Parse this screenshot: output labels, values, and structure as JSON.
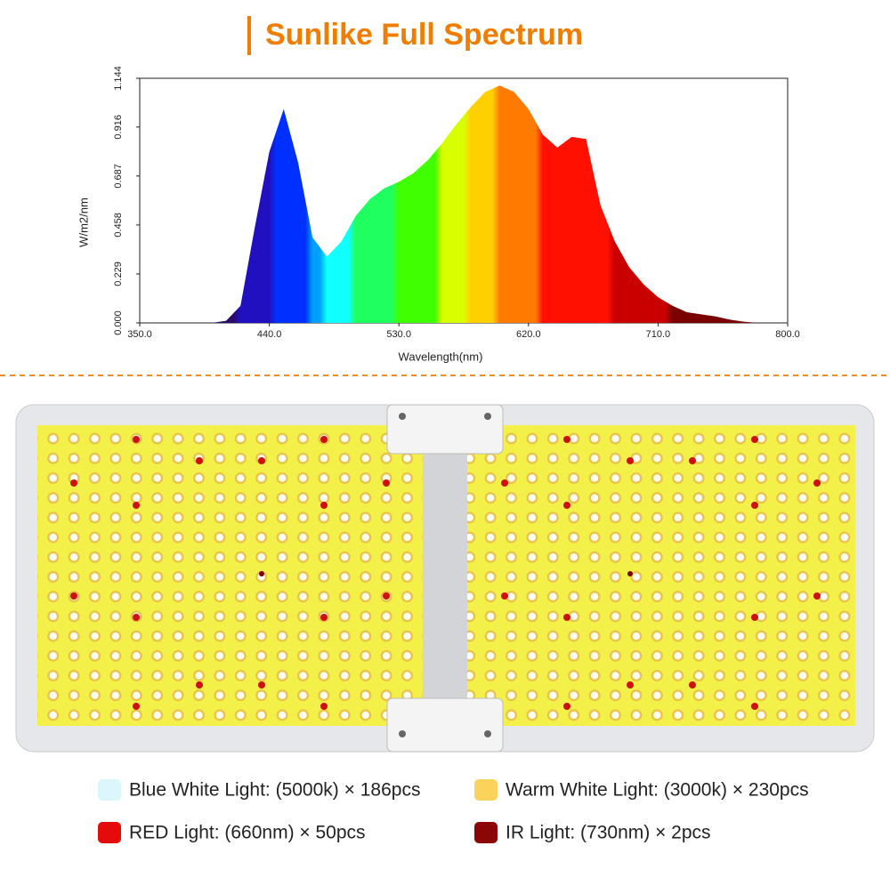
{
  "title": "Sunlike Full Spectrum",
  "chart_data": {
    "type": "area",
    "y_label": "W/m2/nm",
    "x_label": "Wavelength(nm)",
    "x": [
      350,
      360,
      370,
      380,
      390,
      400,
      410,
      420,
      430,
      440,
      450,
      460,
      470,
      480,
      490,
      500,
      510,
      520,
      530,
      540,
      550,
      560,
      570,
      580,
      590,
      600,
      610,
      620,
      630,
      640,
      650,
      660,
      670,
      680,
      690,
      700,
      710,
      720,
      730,
      740,
      750,
      760,
      770,
      780
    ],
    "values": [
      0,
      0,
      0,
      0,
      0,
      0,
      0.01,
      0.08,
      0.45,
      0.8,
      1.0,
      0.75,
      0.4,
      0.31,
      0.38,
      0.5,
      0.58,
      0.63,
      0.66,
      0.7,
      0.76,
      0.84,
      0.93,
      1.01,
      1.08,
      1.11,
      1.08,
      1.0,
      0.88,
      0.82,
      0.87,
      0.86,
      0.55,
      0.38,
      0.26,
      0.18,
      0.12,
      0.08,
      0.05,
      0.04,
      0.03,
      0.015,
      0.005,
      0
    ],
    "xlim": [
      350,
      800
    ],
    "xticks": [
      {
        "value": 350,
        "label": "350.0"
      },
      {
        "value": 440,
        "label": "440.0"
      },
      {
        "value": 530,
        "label": "530.0"
      },
      {
        "value": 620,
        "label": "620.0"
      },
      {
        "value": 710,
        "label": "710.0"
      },
      {
        "value": 800,
        "label": "800.0"
      }
    ],
    "ylim": [
      0,
      1.144
    ],
    "yticks": [
      {
        "value": 0,
        "label": "0.000"
      },
      {
        "value": 0.229,
        "label": "0.229"
      },
      {
        "value": 0.458,
        "label": "0.458"
      },
      {
        "value": 0.687,
        "label": "0.687"
      },
      {
        "value": 0.916,
        "label": "0.916"
      },
      {
        "value": 1.144,
        "label": "1.144"
      }
    ]
  },
  "legend": [
    {
      "label": "Blue White Light: (5000k) × 186pcs",
      "color": "#dcf7fb"
    },
    {
      "label": "Warm White Light: (3000k) × 230pcs",
      "color": "#fcd35a"
    },
    {
      "label": "RED Light: (660nm) × 50pcs",
      "color": "#e30b0b"
    },
    {
      "label": "IR Light: (730nm) × 2pcs",
      "color": "#8b0606"
    }
  ]
}
